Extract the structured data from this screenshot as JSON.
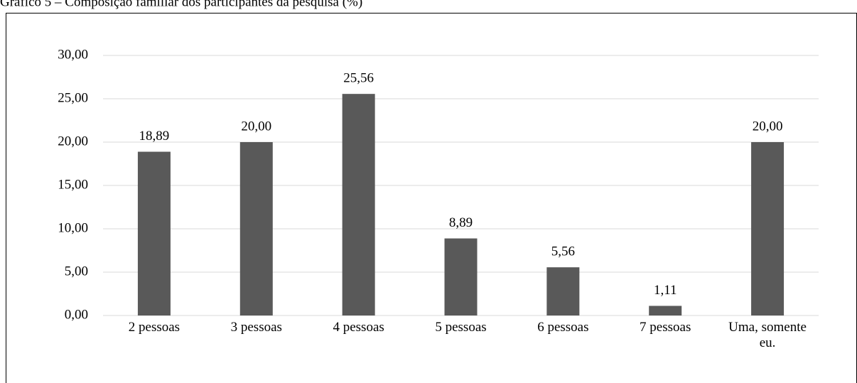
{
  "chart_data": {
    "type": "bar",
    "title": "Gráfico 5 – Composição familiar dos participantes da pesquisa (%)",
    "categories": [
      "2 pessoas",
      "3 pessoas",
      "4 pessoas",
      "5 pessoas",
      "6 pessoas",
      "7 pessoas",
      "Uma, somente eu."
    ],
    "values": [
      18.89,
      20.0,
      25.56,
      8.89,
      5.56,
      1.11,
      20.0
    ],
    "value_labels": [
      "18,89",
      "20,00",
      "25,56",
      "8,89",
      "5,56",
      "1,11",
      "20,00"
    ],
    "color": "#595959",
    "ylim": [
      0,
      30
    ],
    "yticks": [
      {
        "value": 0,
        "label": "0,00"
      },
      {
        "value": 5,
        "label": "5,00"
      },
      {
        "value": 10,
        "label": "10,00"
      },
      {
        "value": 15,
        "label": "15,00"
      },
      {
        "value": 20,
        "label": "20,00"
      },
      {
        "value": 25,
        "label": "25,00"
      },
      {
        "value": 30,
        "label": "30,00"
      }
    ],
    "grid": true
  }
}
